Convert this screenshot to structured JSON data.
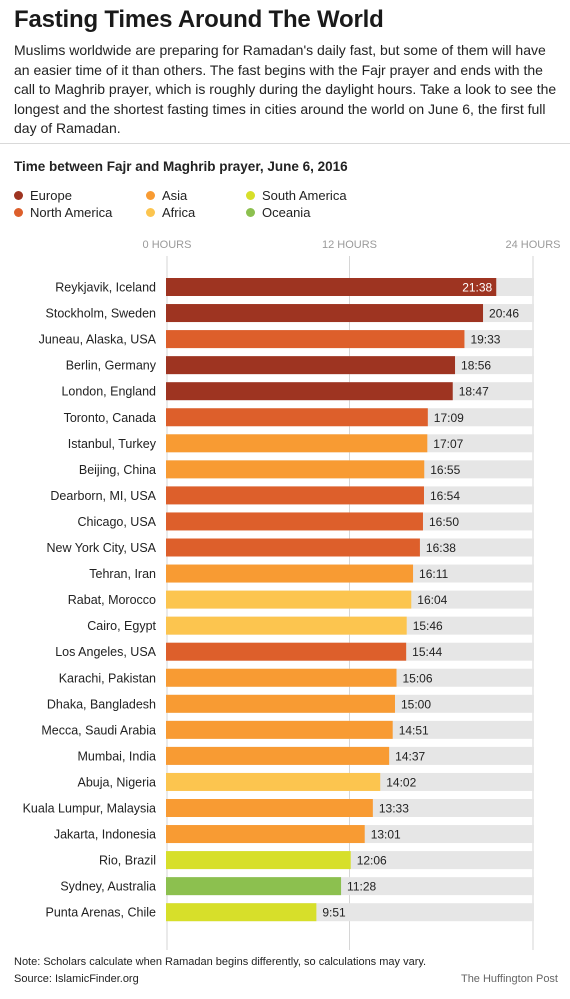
{
  "title": "Fasting Times Around The World",
  "intro": "Muslims worldwide are preparing for Ramadan's daily fast, but some of them will have an easier time of it than others. The fast begins with the Fajr prayer and ends with the call to Maghrib prayer, which is roughly during the daylight hours. Take a look to see the longest and the shortest fasting times in cities around the world on June 6, the first full day of Ramadan.",
  "footer": {
    "note": "Note: Scholars calculate when Ramadan begins differently, so calculations may vary.",
    "source": "Source: IslamicFinder.org",
    "credit": "The Huffington Post"
  },
  "chart_data": {
    "type": "bar",
    "orientation": "horizontal",
    "title": "Time between Fajr and Maghrib prayer, June 6, 2016",
    "xlim": [
      0,
      24
    ],
    "xticks": [
      {
        "value": 0,
        "label": "0 HOURS"
      },
      {
        "value": 12,
        "label": "12 HOURS"
      },
      {
        "value": 24,
        "label": "24 HOURS"
      }
    ],
    "grid": true,
    "legend_position": "top-left",
    "regions": [
      {
        "name": "Europe",
        "color": "#9e3421"
      },
      {
        "name": "North America",
        "color": "#dd5f2b"
      },
      {
        "name": "Asia",
        "color": "#f89b33"
      },
      {
        "name": "Africa",
        "color": "#fcc54f"
      },
      {
        "name": "South America",
        "color": "#d7df2a"
      },
      {
        "name": "Oceania",
        "color": "#8cc04f"
      }
    ],
    "background_bar_color": "#e6e6e6",
    "rows": [
      {
        "city": "Reykjavik, Iceland",
        "time": "21:38",
        "hours": 21.633,
        "region": "Europe"
      },
      {
        "city": "Stockholm, Sweden",
        "time": "20:46",
        "hours": 20.767,
        "region": "Europe"
      },
      {
        "city": "Juneau, Alaska, USA",
        "time": "19:33",
        "hours": 19.55,
        "region": "North America"
      },
      {
        "city": "Berlin, Germany",
        "time": "18:56",
        "hours": 18.933,
        "region": "Europe"
      },
      {
        "city": "London, England",
        "time": "18:47",
        "hours": 18.783,
        "region": "Europe"
      },
      {
        "city": "Toronto, Canada",
        "time": "17:09",
        "hours": 17.15,
        "region": "North America"
      },
      {
        "city": "Istanbul, Turkey",
        "time": "17:07",
        "hours": 17.117,
        "region": "Asia"
      },
      {
        "city": "Beijing, China",
        "time": "16:55",
        "hours": 16.917,
        "region": "Asia"
      },
      {
        "city": "Dearborn, MI, USA",
        "time": "16:54",
        "hours": 16.9,
        "region": "North America"
      },
      {
        "city": "Chicago, USA",
        "time": "16:50",
        "hours": 16.833,
        "region": "North America"
      },
      {
        "city": "New York City, USA",
        "time": "16:38",
        "hours": 16.633,
        "region": "North America"
      },
      {
        "city": "Tehran, Iran",
        "time": "16:11",
        "hours": 16.183,
        "region": "Asia"
      },
      {
        "city": "Rabat, Morocco",
        "time": "16:04",
        "hours": 16.067,
        "region": "Africa"
      },
      {
        "city": "Cairo, Egypt",
        "time": "15:46",
        "hours": 15.767,
        "region": "Africa"
      },
      {
        "city": "Los Angeles, USA",
        "time": "15:44",
        "hours": 15.733,
        "region": "North America"
      },
      {
        "city": "Karachi, Pakistan",
        "time": "15:06",
        "hours": 15.1,
        "region": "Asia"
      },
      {
        "city": "Dhaka, Bangladesh",
        "time": "15:00",
        "hours": 15.0,
        "region": "Asia"
      },
      {
        "city": "Mecca, Saudi Arabia",
        "time": "14:51",
        "hours": 14.85,
        "region": "Asia"
      },
      {
        "city": "Mumbai, India",
        "time": "14:37",
        "hours": 14.617,
        "region": "Asia"
      },
      {
        "city": "Abuja, Nigeria",
        "time": "14:02",
        "hours": 14.033,
        "region": "Africa"
      },
      {
        "city": "Kuala Lumpur, Malaysia",
        "time": "13:33",
        "hours": 13.55,
        "region": "Asia"
      },
      {
        "city": "Jakarta, Indonesia",
        "time": "13:01",
        "hours": 13.017,
        "region": "Asia"
      },
      {
        "city": "Rio, Brazil",
        "time": "12:06",
        "hours": 12.1,
        "region": "South America"
      },
      {
        "city": "Sydney, Australia",
        "time": "11:28",
        "hours": 11.467,
        "region": "Oceania"
      },
      {
        "city": "Punta Arenas, Chile",
        "time": "9:51",
        "hours": 9.85,
        "region": "South America"
      }
    ]
  }
}
